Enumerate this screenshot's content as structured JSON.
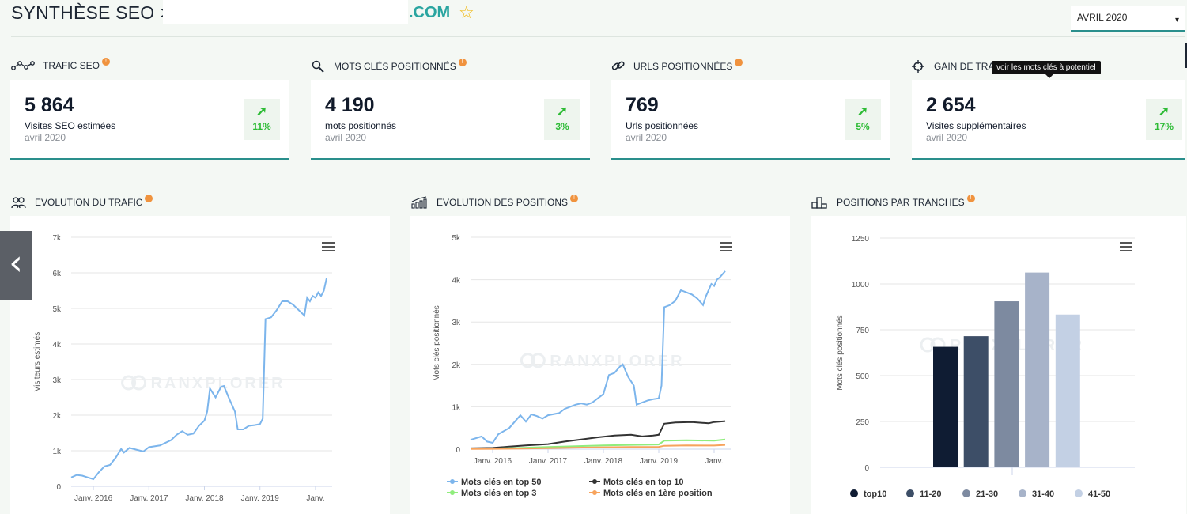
{
  "header": {
    "title_prefix": "SYNTHÈSE SEO >",
    "domain_suffix": ".COM",
    "star_glyph": "☆",
    "month_selector": {
      "value": "AVRIL 2020",
      "caret": "▾"
    }
  },
  "colors": {
    "accent": "#2a8f8c",
    "trend_up": "#2dbb35",
    "info": "#f0933e"
  },
  "kpis": [
    {
      "title": "TRAFIC SEO",
      "icon": "network-icon",
      "value": "5 864",
      "label": "Visites SEO estimées",
      "date": "avril 2020",
      "trend": "11%",
      "trend_arrow": "➚"
    },
    {
      "title": "MOTS CLÉS POSITIONNÉS",
      "icon": "search-icon",
      "value": "4 190",
      "label": "mots positionnés",
      "date": "avril 2020",
      "trend": "3%",
      "trend_arrow": "➚"
    },
    {
      "title": "URLS POSITIONNÉES",
      "icon": "link-icon",
      "value": "769",
      "label": "Urls positionnées",
      "date": "avril 2020",
      "trend": "5%",
      "trend_arrow": "➚"
    },
    {
      "title": "GAIN DE TRA",
      "icon": "target-icon",
      "value": "2 654",
      "label": "Visites supplémentaires",
      "date": "avril 2020",
      "trend": "17%",
      "trend_arrow": "➚"
    }
  ],
  "tooltip": "voir les mots clés à potentiel",
  "info_glyph": "!",
  "carousel_prev_glyph": "‹",
  "sections": {
    "traffic": "EVOLUTION DU TRAFIC",
    "positions": "EVOLUTION DES POSITIONS",
    "tranches": "POSITIONS PAR TRANCHES"
  },
  "watermark": "RANXPLORER",
  "chart_data": [
    {
      "type": "line",
      "ylabel": "Visiteurs estimés",
      "ylim": [
        0,
        7000
      ],
      "y_ticks": [
        "0",
        "1k",
        "2k",
        "3k",
        "4k",
        "5k",
        "6k",
        "7k"
      ],
      "x_ticks": [
        "Janv. 2016",
        "Janv. 2017",
        "Janv. 2018",
        "Janv. 2019",
        "Janv."
      ],
      "x_range": [
        2015.6,
        2020.3
      ],
      "grid": true,
      "series": [
        {
          "color": "#7cb5ec",
          "points": [
            [
              2015.6,
              250
            ],
            [
              2015.7,
              320
            ],
            [
              2015.8,
              300
            ],
            [
              2015.9,
              250
            ],
            [
              2016.0,
              200
            ],
            [
              2016.1,
              400
            ],
            [
              2016.2,
              560
            ],
            [
              2016.3,
              600
            ],
            [
              2016.4,
              800
            ],
            [
              2016.5,
              1050
            ],
            [
              2016.55,
              950
            ],
            [
              2016.65,
              1080
            ],
            [
              2016.8,
              1020
            ],
            [
              2016.9,
              980
            ],
            [
              2017.0,
              1100
            ],
            [
              2017.2,
              1150
            ],
            [
              2017.4,
              1300
            ],
            [
              2017.5,
              1450
            ],
            [
              2017.6,
              1550
            ],
            [
              2017.7,
              1450
            ],
            [
              2017.8,
              1480
            ],
            [
              2017.9,
              1700
            ],
            [
              2018.0,
              1850
            ],
            [
              2018.05,
              2100
            ],
            [
              2018.1,
              2750
            ],
            [
              2018.2,
              2500
            ],
            [
              2018.3,
              2800
            ],
            [
              2018.35,
              2820
            ],
            [
              2018.45,
              2450
            ],
            [
              2018.55,
              2100
            ],
            [
              2018.6,
              1600
            ],
            [
              2018.7,
              1600
            ],
            [
              2018.8,
              1700
            ],
            [
              2018.9,
              1720
            ],
            [
              2019.0,
              1750
            ],
            [
              2019.05,
              1900
            ],
            [
              2019.1,
              4700
            ],
            [
              2019.2,
              4750
            ],
            [
              2019.3,
              4950
            ],
            [
              2019.4,
              5200
            ],
            [
              2019.5,
              5200
            ],
            [
              2019.6,
              5100
            ],
            [
              2019.7,
              4950
            ],
            [
              2019.8,
              4800
            ],
            [
              2019.85,
              5300
            ],
            [
              2019.9,
              5200
            ],
            [
              2019.95,
              5350
            ],
            [
              2020.0,
              5300
            ],
            [
              2020.05,
              5450
            ],
            [
              2020.1,
              5350
            ],
            [
              2020.15,
              5500
            ],
            [
              2020.2,
              5850
            ]
          ]
        }
      ]
    },
    {
      "type": "line",
      "ylabel": "Mots clés positionnés",
      "ylim": [
        0,
        5000
      ],
      "y_ticks": [
        "0",
        "1k",
        "2k",
        "3k",
        "4k",
        "5k"
      ],
      "x_ticks": [
        "Janv. 2016",
        "Janv. 2017",
        "Janv. 2018",
        "Janv. 2019",
        "Janv."
      ],
      "x_range": [
        2015.6,
        2020.3
      ],
      "grid": true,
      "legend_position": "bottom",
      "series": [
        {
          "name": "Mots clés en top 50",
          "color": "#7cb5ec",
          "points": [
            [
              2015.6,
              220
            ],
            [
              2015.8,
              300
            ],
            [
              2015.9,
              180
            ],
            [
              2016.0,
              150
            ],
            [
              2016.1,
              350
            ],
            [
              2016.3,
              500
            ],
            [
              2016.4,
              650
            ],
            [
              2016.5,
              800
            ],
            [
              2016.6,
              650
            ],
            [
              2016.7,
              820
            ],
            [
              2016.8,
              780
            ],
            [
              2016.9,
              720
            ],
            [
              2017.0,
              800
            ],
            [
              2017.2,
              850
            ],
            [
              2017.3,
              950
            ],
            [
              2017.5,
              1050
            ],
            [
              2017.6,
              1080
            ],
            [
              2017.7,
              1050
            ],
            [
              2017.8,
              1100
            ],
            [
              2017.9,
              1200
            ],
            [
              2018.0,
              1300
            ],
            [
              2018.1,
              1750
            ],
            [
              2018.2,
              1800
            ],
            [
              2018.3,
              1950
            ],
            [
              2018.35,
              2000
            ],
            [
              2018.45,
              1700
            ],
            [
              2018.55,
              1500
            ],
            [
              2018.6,
              1050
            ],
            [
              2018.7,
              1100
            ],
            [
              2018.8,
              1150
            ],
            [
              2018.9,
              1180
            ],
            [
              2019.0,
              1200
            ],
            [
              2019.05,
              1500
            ],
            [
              2019.1,
              3350
            ],
            [
              2019.2,
              3400
            ],
            [
              2019.3,
              3500
            ],
            [
              2019.4,
              3750
            ],
            [
              2019.5,
              3700
            ],
            [
              2019.6,
              3650
            ],
            [
              2019.7,
              3550
            ],
            [
              2019.8,
              3400
            ],
            [
              2019.85,
              3600
            ],
            [
              2019.9,
              3750
            ],
            [
              2019.95,
              3900
            ],
            [
              2020.0,
              3850
            ],
            [
              2020.05,
              4000
            ],
            [
              2020.1,
              4050
            ],
            [
              2020.2,
              4200
            ]
          ]
        },
        {
          "name": "Mots clés en top 10",
          "color": "#333333",
          "points": [
            [
              2015.6,
              20
            ],
            [
              2016.0,
              30
            ],
            [
              2016.3,
              60
            ],
            [
              2016.6,
              90
            ],
            [
              2017.0,
              120
            ],
            [
              2017.3,
              180
            ],
            [
              2017.6,
              230
            ],
            [
              2017.9,
              280
            ],
            [
              2018.2,
              320
            ],
            [
              2018.5,
              340
            ],
            [
              2018.7,
              300
            ],
            [
              2018.9,
              320
            ],
            [
              2019.0,
              340
            ],
            [
              2019.1,
              600
            ],
            [
              2019.3,
              630
            ],
            [
              2019.6,
              640
            ],
            [
              2019.9,
              610
            ],
            [
              2020.0,
              640
            ],
            [
              2020.2,
              660
            ]
          ]
        },
        {
          "name": "Mots clés en top 3",
          "color": "#90ed7d",
          "points": [
            [
              2015.6,
              10
            ],
            [
              2016.0,
              15
            ],
            [
              2016.5,
              30
            ],
            [
              2017.0,
              50
            ],
            [
              2017.5,
              70
            ],
            [
              2018.0,
              90
            ],
            [
              2018.5,
              100
            ],
            [
              2019.0,
              110
            ],
            [
              2019.1,
              200
            ],
            [
              2019.5,
              210
            ],
            [
              2020.0,
              200
            ],
            [
              2020.2,
              230
            ]
          ]
        },
        {
          "name": "Mots clés en 1ère position",
          "color": "#f7a35c",
          "points": [
            [
              2015.6,
              5
            ],
            [
              2016.0,
              8
            ],
            [
              2016.5,
              15
            ],
            [
              2017.0,
              25
            ],
            [
              2017.5,
              35
            ],
            [
              2018.0,
              45
            ],
            [
              2018.5,
              50
            ],
            [
              2019.0,
              55
            ],
            [
              2019.1,
              80
            ],
            [
              2019.5,
              90
            ],
            [
              2020.0,
              85
            ],
            [
              2020.2,
              100
            ]
          ]
        }
      ]
    },
    {
      "type": "bar",
      "ylabel": "Mots clés positionnés",
      "ylim": [
        0,
        1250
      ],
      "y_ticks": [
        "0",
        "250",
        "500",
        "750",
        "1000",
        "1250"
      ],
      "grid": true,
      "legend_position": "bottom",
      "categories": [
        "top10",
        "11-20",
        "21-30",
        "31-40",
        "41-50"
      ],
      "values": [
        657,
        715,
        905,
        1062,
        833
      ],
      "colors": [
        "#0f1c33",
        "#3d4e67",
        "#7d8aa0",
        "#a7b3c9",
        "#c3d0e4"
      ]
    }
  ]
}
